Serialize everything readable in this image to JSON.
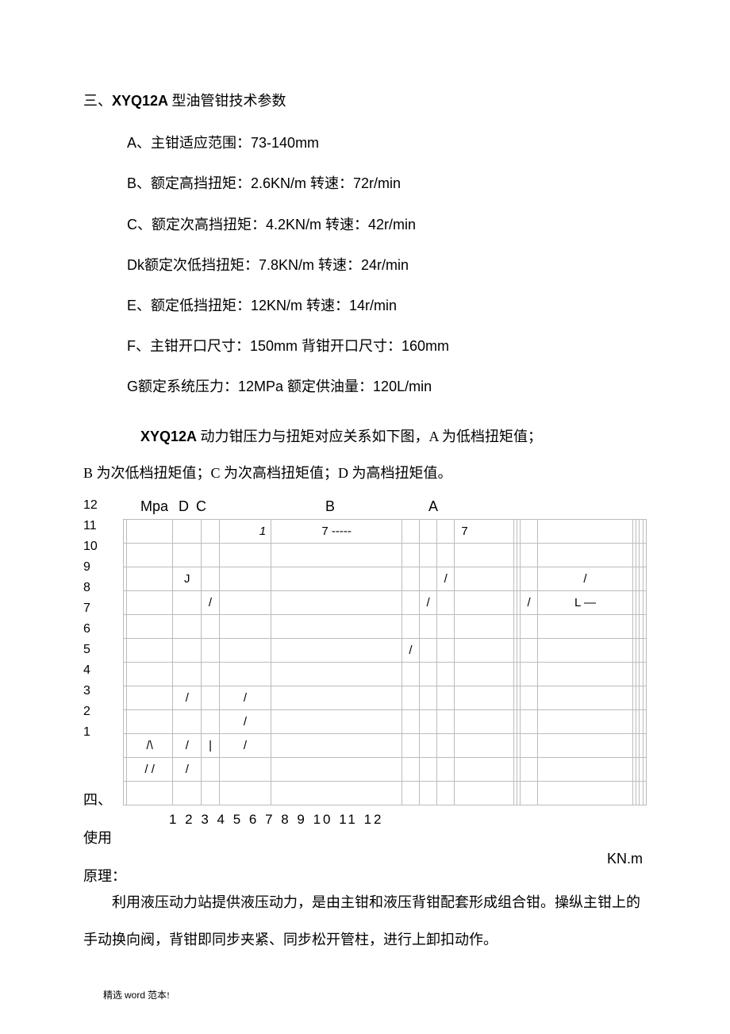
{
  "section3": {
    "prefix": "三、",
    "model": "XYQ12A",
    "suffix": " 型油管钳技术参数",
    "items": [
      {
        "key": "A、",
        "label": "主钳适应范围：",
        "value": "73-140mm"
      },
      {
        "key": "B、",
        "label": "额定高挡扭矩：",
        "value": "2.6KN/m 转速：72r/min"
      },
      {
        "key": "C、",
        "label": "额定次高挡扭矩：",
        "value": "4.2KN/m 转速：42r/min"
      },
      {
        "key": "Dk",
        "label": "额定次低挡扭矩：",
        "value": "7.8KN/m 转速：24r/min"
      },
      {
        "key": "E、",
        "label": "额定低挡扭矩：",
        "value": "12KN/m 转速：14r/min"
      },
      {
        "key": "F、",
        "label": "主钳开口尺寸：",
        "value": "150mm 背钳开口尺寸：160mm"
      },
      {
        "key": "G",
        "label": "额定系统压力：",
        "value": "12MPa 额定供油量：120L/min"
      }
    ]
  },
  "chart_note": {
    "model": "XYQ12A",
    "line1_rest": " 动力钳压力与扭矩对应关系如下图，A 为低档扭矩值；",
    "line2": "B 为次低档扭矩值；C 为次高档扭矩值；D 为高档扭矩值。"
  },
  "chart": {
    "y_values": [
      "12",
      "11",
      "10",
      "9",
      "8",
      "7",
      "6",
      "5",
      "4",
      "3",
      "2",
      "1"
    ],
    "side4": "四、",
    "side_use": "使用",
    "side_principle": "原理：",
    "header": {
      "mpa": "Mpa",
      "D": "D",
      "C": "C",
      "B": "B",
      "A": "A"
    },
    "cols": 18,
    "rows": 12,
    "cells": {
      "r0c4": "1",
      "r0c5": "7 -----",
      "r0c9": "7",
      "r2c2": "J",
      "r2c8": "/",
      "r2c13": "/",
      "r3c3": "/",
      "r3c7": "/",
      "r3c12": "/",
      "r3c13": "L —",
      "r5c6": "/",
      "r7c2": "/",
      "r7c4": "/",
      "r8c4": "/",
      "r9c1": "/\\",
      "r9c2": "/",
      "r9c3": "|",
      "r9c4": "/",
      "r10c1": "/ /",
      "r10c2": "/"
    },
    "x_labels": "1 2 3 4 5 6 7 8 9 10 11 12",
    "unit": "KN.m"
  },
  "section4_para": "利用液压动力站提供液压动力，是由主钳和液压背钳配套形成组合钳。操纵主钳上的手动换向阀，背钳即同步夹紧、同步松开管柱，进行上卸扣动作。",
  "footer": {
    "pre": "精选 ",
    "word": "word",
    "post": " 范本!"
  }
}
